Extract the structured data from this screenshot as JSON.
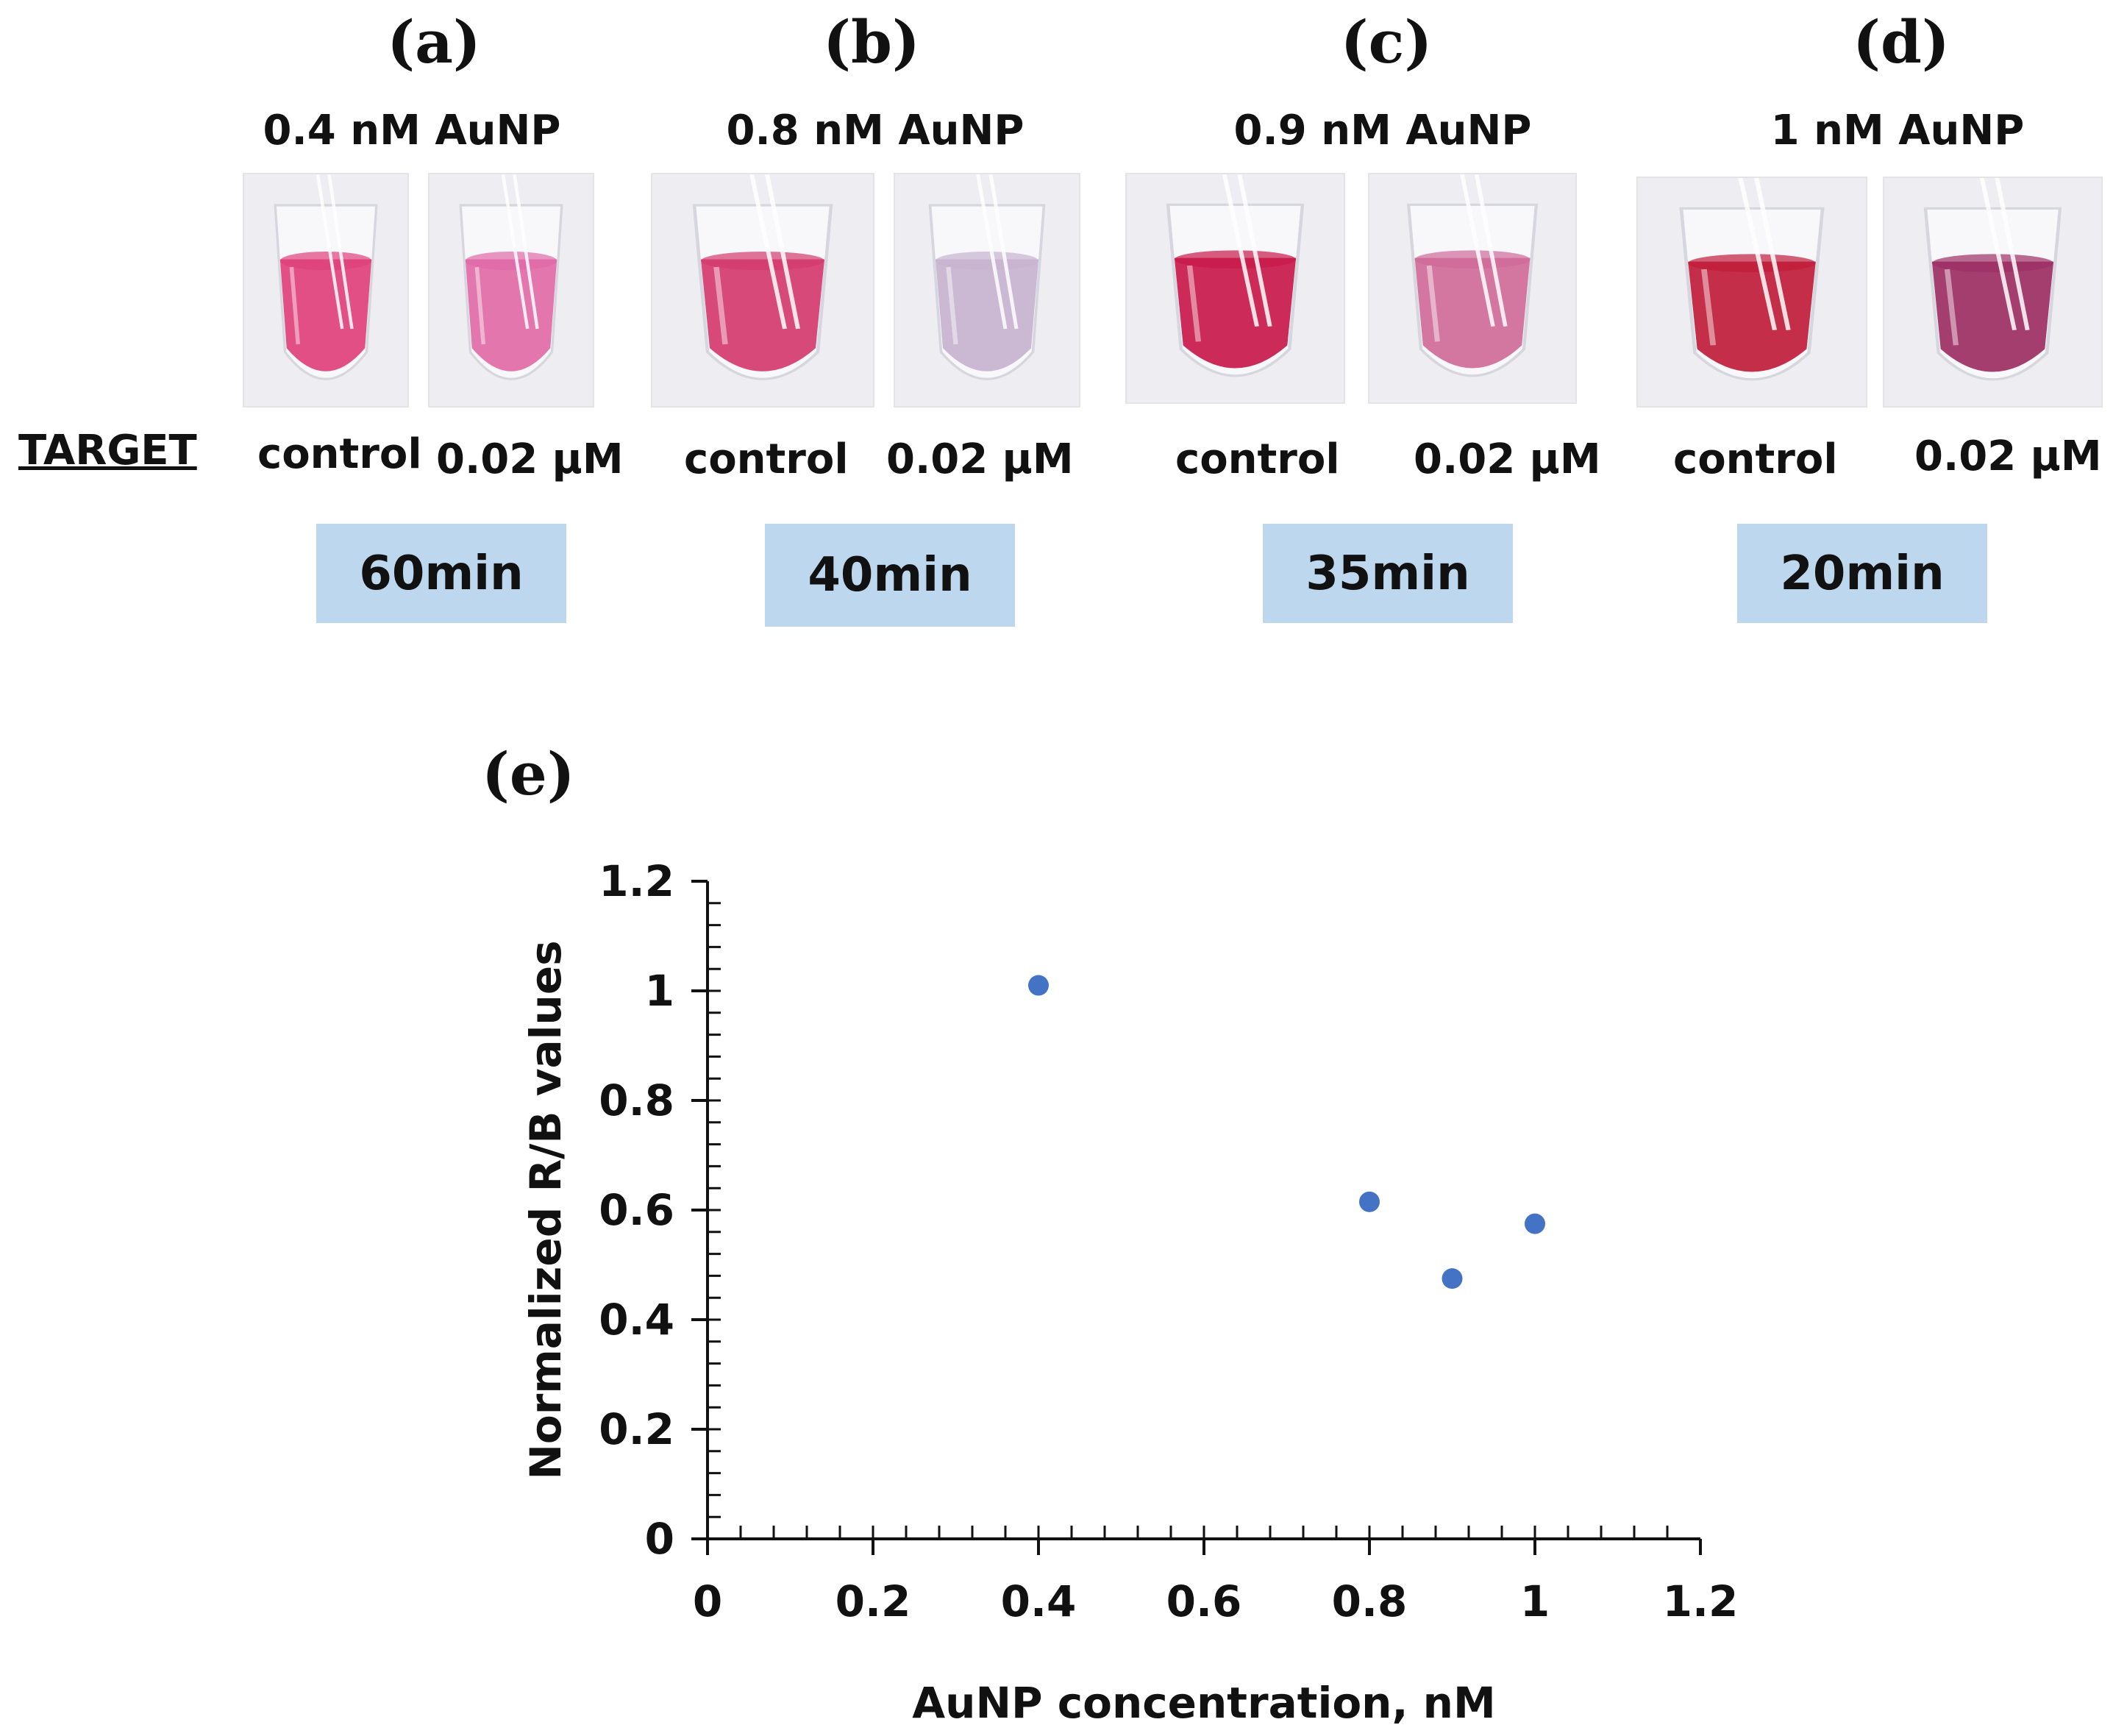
{
  "panels": [
    {
      "letter": "(a)",
      "concentration": "0.4 nM AuNP",
      "control_label": "control",
      "sample_label": "0.02 μM",
      "time": "60min",
      "control_color": "#e0407a",
      "sample_color": "#e06aa6"
    },
    {
      "letter": "(b)",
      "concentration": "0.8 nM AuNP",
      "control_label": "control",
      "sample_label": "0.02 μM",
      "time": "40min",
      "control_color": "#d43a6c",
      "sample_color": "#c7b3cf"
    },
    {
      "letter": "(c)",
      "concentration": "0.9 nM AuNP",
      "control_label": "control",
      "sample_label": "0.02 μM",
      "time": "35min",
      "control_color": "#c8184a",
      "sample_color": "#cf6a98"
    },
    {
      "letter": "(d)",
      "concentration": "1 nM AuNP",
      "control_label": "control",
      "sample_label": "0.02 μM",
      "time": "20min",
      "control_color": "#c01c3a",
      "sample_color": "#9c2e62"
    }
  ],
  "row_label": "TARGET",
  "chart_label": "(e)",
  "chart_data": {
    "type": "scatter",
    "title": "",
    "xlabel": "AuNP concentration, nM",
    "ylabel": "Normalized R/B values",
    "xlim": [
      0,
      1.2
    ],
    "ylim": [
      0,
      1.2
    ],
    "xticks": [
      "0",
      "0.2",
      "0.4",
      "0.6",
      "0.8",
      "1",
      "1.2"
    ],
    "yticks": [
      "0",
      "0.2",
      "0.4",
      "0.6",
      "0.8",
      "1",
      "1.2"
    ],
    "points": [
      {
        "x": 0.4,
        "y": 1.01
      },
      {
        "x": 0.8,
        "y": 0.615
      },
      {
        "x": 0.9,
        "y": 0.475
      },
      {
        "x": 1.0,
        "y": 0.575
      }
    ],
    "marker_color": "#4472c4",
    "grid": false
  }
}
